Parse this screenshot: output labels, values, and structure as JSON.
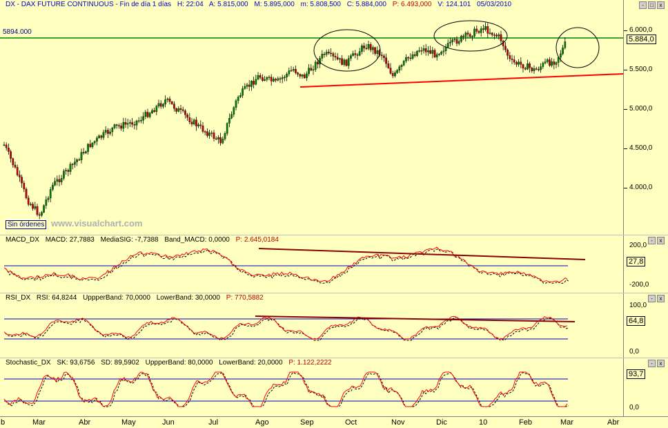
{
  "main": {
    "header": {
      "symbol": "DX - DAX FUTURE CONTINUOUS - Fin de día 1 días",
      "h": "H: 22:04",
      "a": "A: 5.815,000",
      "m": "M: 5.895,000",
      "mi": "m: 5.808,500",
      "c": "C: 5.884,000",
      "p": "P: 6.493,000",
      "v": "V: 124.101",
      "date": "05/03/2010"
    },
    "ref_level": "5894.000",
    "orders_badge": "Sin órdenes",
    "watermark": "www.visualchart.com",
    "last_value": "5.884,0",
    "ticks": [
      "6.000,0",
      "5.500,0",
      "5.000,0",
      "4.500,0",
      "4.000,0"
    ],
    "controls": [
      "-",
      "□",
      "x"
    ]
  },
  "macd": {
    "header": {
      "name": "MACD_DX",
      "macd": "MACD: 27,7883",
      "sig": "MediaSIG: -7,7388",
      "band": "Band_MACD: 0,0000",
      "p": "P: 2.645,0184"
    },
    "ticks": [
      "200,0",
      "-200,0"
    ],
    "last_value": "27,8"
  },
  "rsi": {
    "header": {
      "name": "RSI_DX",
      "rsi": "RSI: 64,8244",
      "up": "UppperBand: 70,0000",
      "low": "LowerBand: 30,0000",
      "p": "P: 770,5882"
    },
    "ticks": [
      "100,0",
      "0,0"
    ],
    "last_value": "64,8"
  },
  "stoch": {
    "header": {
      "name": "Stochastic_DX",
      "sk": "SK: 93,6756",
      "sd": "SD: 89,5902",
      "up": "UppperBand: 80,0000",
      "low": "LowerBand: 20,0000",
      "p": "P: 1.122,2222"
    },
    "ticks": [
      "0,0"
    ],
    "last_value": "93,7"
  },
  "months": [
    "b",
    "Mar",
    "Abr",
    "May",
    "Jun",
    "Jul",
    "Ago",
    "Sep",
    "Oct",
    "Nov",
    "Dic",
    "10",
    "Feb",
    "Mar",
    "Abr"
  ],
  "colors": {
    "pane_bg": "#ffffc0",
    "bull": "#008000",
    "bear": "#c00000",
    "support": "#ff0000",
    "resistance": "#008000",
    "indicator_line": "#ff0000",
    "signal_line": "#000000",
    "band_line": "#0000c0",
    "trend_line": "#8b0000"
  }
}
